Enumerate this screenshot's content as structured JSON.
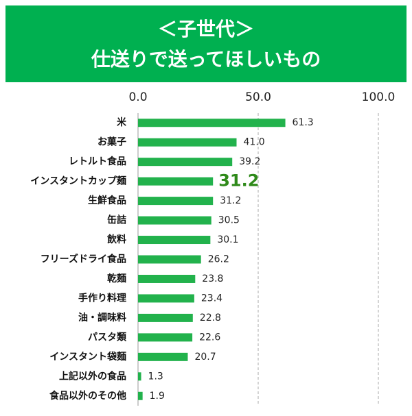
{
  "chart_data": {
    "type": "bar",
    "orientation": "horizontal",
    "title": [
      "＜子世代＞",
      "仕送りで送ってほしいもの"
    ],
    "categories": [
      "米",
      "お菓子",
      "レトルト食品",
      "インスタントカップ麺",
      "生鮮食品",
      "缶詰",
      "飲料",
      "フリーズドライ食品",
      "乾麺",
      "手作り料理",
      "油・調味料",
      "パスタ類",
      "インスタント袋麺",
      "上記以外の食品",
      "食品以外のその他"
    ],
    "values": [
      61.3,
      41.0,
      39.2,
      31.2,
      31.2,
      30.5,
      30.1,
      26.2,
      23.8,
      23.4,
      22.8,
      22.6,
      20.7,
      1.3,
      1.9
    ],
    "value_labels": [
      "61.3",
      "41.0",
      "39.2",
      "31.2",
      "31.2",
      "30.5",
      "30.1",
      "26.2",
      "23.8",
      "23.4",
      "22.8",
      "22.6",
      "20.7",
      "1.3",
      "1.9"
    ],
    "highlight": 3,
    "color": "#22b24c",
    "xlim": [
      0,
      100
    ],
    "xticks": [
      {
        "value": 0,
        "label": "0.0"
      },
      {
        "value": 50,
        "label": "50.0"
      },
      {
        "value": 100,
        "label": "100.0"
      }
    ],
    "grid": true
  }
}
